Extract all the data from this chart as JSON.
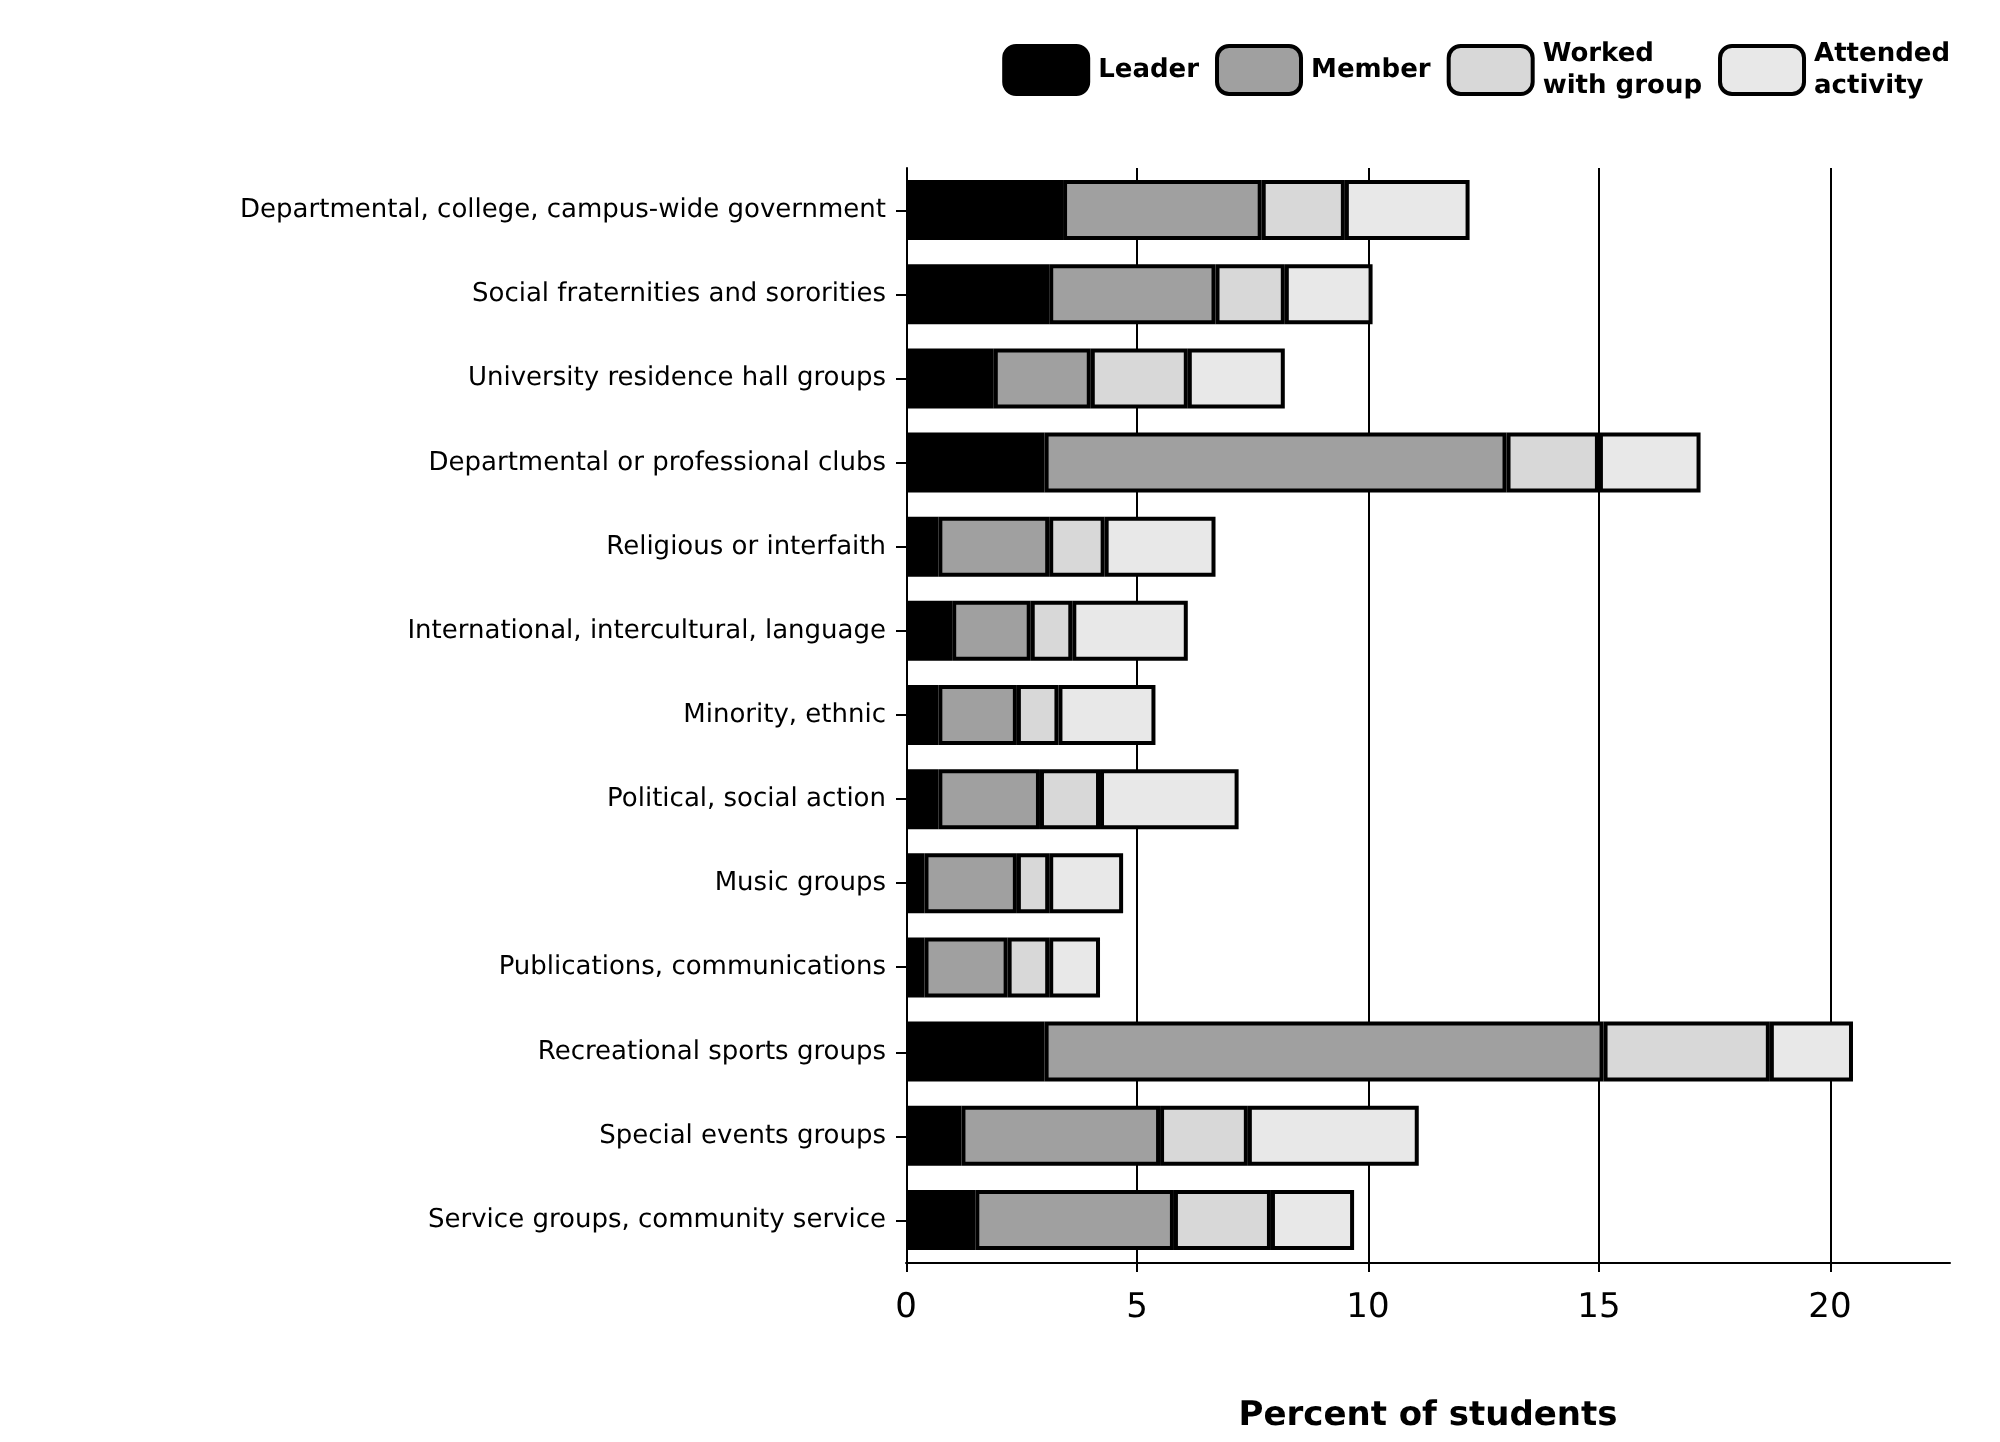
{
  "chart_data": {
    "type": "bar",
    "orientation": "horizontal",
    "stacked": true,
    "xlabel": "Percent of students",
    "categories": [
      "Departmental, college, campus-wide government",
      "Social fraternities and sororities",
      "University residence hall groups",
      "Departmental or professional clubs",
      "Religious or interfaith",
      "International, intercultural, language",
      "Minority, ethnic",
      "Political, social action",
      "Music groups",
      "Publications, communications",
      "Recreational sports groups",
      "Special events groups",
      "Service groups, community service"
    ],
    "series": [
      {
        "name": "Leader",
        "color": "#000000",
        "values": [
          3.4,
          3.1,
          1.9,
          3.0,
          0.7,
          1.0,
          0.7,
          0.7,
          0.4,
          0.4,
          3.0,
          1.2,
          1.5
        ]
      },
      {
        "name": "Member",
        "color": "#a0a0a0",
        "values": [
          4.3,
          3.6,
          2.1,
          10.0,
          2.4,
          1.7,
          1.7,
          2.2,
          2.0,
          1.8,
          12.1,
          4.3,
          4.3
        ]
      },
      {
        "name": "Worked\nwith group",
        "color": "#d8d8d8",
        "values": [
          1.8,
          1.5,
          2.1,
          2.0,
          1.2,
          0.9,
          0.9,
          1.3,
          0.7,
          0.9,
          3.6,
          1.9,
          2.1
        ]
      },
      {
        "name": "Attended\nactivity",
        "color": "#e8e8e8",
        "values": [
          2.7,
          1.9,
          2.1,
          2.2,
          2.4,
          2.5,
          2.1,
          3.0,
          1.6,
          1.1,
          1.8,
          3.7,
          1.8
        ]
      }
    ],
    "xlim": [
      0,
      22.6
    ],
    "xticks": [
      0,
      5,
      10,
      15,
      20
    ],
    "grid": "x",
    "legend": "top right"
  }
}
